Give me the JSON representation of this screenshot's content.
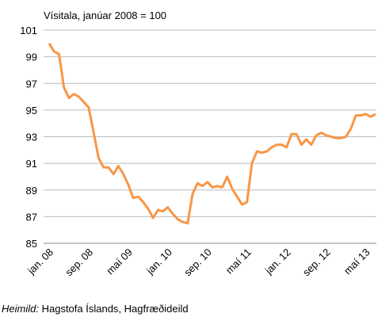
{
  "chart_data": {
    "type": "line",
    "y_axis_label": "Vísitala, janúar 2008 = 100",
    "source_label": "Heimild:",
    "source": "Hagstofa Íslands, Hagfræðideild",
    "categories": [
      "jan. 08",
      null,
      null,
      null,
      null,
      null,
      null,
      null,
      "sep. 08",
      null,
      null,
      null,
      null,
      null,
      null,
      null,
      "maí 09",
      null,
      null,
      null,
      null,
      null,
      null,
      null,
      "jan. 10",
      null,
      null,
      null,
      null,
      null,
      null,
      null,
      "sep. 10",
      null,
      null,
      null,
      null,
      null,
      null,
      null,
      "maí 11",
      null,
      null,
      null,
      null,
      null,
      null,
      null,
      "jan. 12",
      null,
      null,
      null,
      null,
      null,
      null,
      null,
      "sep. 12",
      null,
      null,
      null,
      null,
      null,
      null,
      null,
      "maí 13",
      null,
      null
    ],
    "series": [
      {
        "color": "#f79646",
        "values": [
          100.0,
          99.4,
          99.2,
          96.7,
          95.9,
          96.2,
          96.0,
          95.6,
          95.2,
          93.3,
          91.4,
          90.7,
          90.7,
          90.2,
          90.8,
          90.2,
          89.4,
          88.4,
          88.5,
          88.1,
          87.6,
          86.9,
          87.5,
          87.4,
          87.7,
          87.2,
          86.8,
          86.6,
          86.5,
          88.7,
          89.5,
          89.3,
          89.6,
          89.2,
          89.3,
          89.2,
          90.0,
          89.1,
          88.5,
          87.9,
          88.1,
          91.0,
          91.9,
          91.8,
          91.9,
          92.2,
          92.4,
          92.4,
          92.2,
          93.2,
          93.2,
          92.4,
          92.8,
          92.4,
          93.1,
          93.3,
          93.1,
          93.0,
          92.9,
          92.9,
          93.0,
          93.6,
          94.6,
          94.6,
          94.7,
          94.5,
          94.7
        ]
      }
    ],
    "ylim": [
      85,
      101
    ],
    "yticks": [
      85,
      87,
      89,
      91,
      93,
      95,
      97,
      99,
      101
    ],
    "grid": true
  }
}
